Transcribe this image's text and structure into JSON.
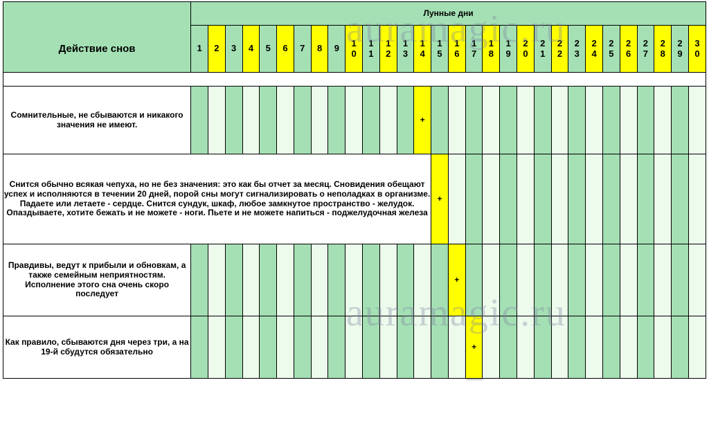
{
  "header": {
    "super_title": "Лунные дни",
    "row_title": "Действие снов"
  },
  "days": [
    "1",
    "2",
    "3",
    "4",
    "5",
    "6",
    "7",
    "8",
    "9",
    "10",
    "11",
    "12",
    "13",
    "14",
    "15",
    "16",
    "17",
    "18",
    "19",
    "20",
    "21",
    "22",
    "23",
    "24",
    "25",
    "26",
    "27",
    "28",
    "29",
    "30"
  ],
  "yellow_header_days": [
    2,
    4,
    6,
    8,
    10,
    12,
    14,
    16,
    18,
    20,
    22,
    24,
    26,
    28,
    30
  ],
  "rows": [
    {
      "label": "Сомнительные, не сбываются и никакого значения не имеют.",
      "plus_day": 14,
      "label_span": 1,
      "wide": false
    },
    {
      "label": "Снится обычно всякая чепуха, но не без значения: это как бы отчет за месяц. Сновидения  обещают успех и исполняются  в течении 20 дней, порой сны могут сигнализировать о неполадках в организме.  Падаете или летаете - сердце. Снится сундук, шкаф, любое замкнутое пространство - желудок. Опаздываете, хотите бежать и не можете - ноги. Пьете и не можете напиться - поджелудочная железа",
      "plus_day": 15,
      "label_span": 15,
      "wide": true
    },
    {
      "label": "Правдивы, ведут к прибыли и обновкам, а также семейным неприятностям. Исполнение этого сна очень скоро последует",
      "plus_day": 16,
      "label_span": 1,
      "wide": false
    },
    {
      "label": "Как правило, сбываются дня через три, а на 19-й сбудутся обязательно",
      "plus_day": 17,
      "label_span": 1,
      "wide": false
    }
  ],
  "plus_glyph": "+",
  "watermark": "auramagic.ru",
  "colors": {
    "green": "#a4e0b4",
    "pale": "#ecfbec",
    "yellow": "#ffff00",
    "border": "#000000",
    "text": "#000000"
  },
  "fontsizes": {
    "body": 12.5,
    "header_num": 13,
    "title": 13,
    "row_title": 15,
    "watermark": 56
  }
}
